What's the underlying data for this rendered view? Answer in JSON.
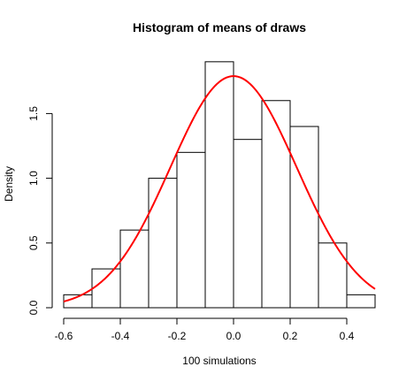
{
  "chart_data": {
    "type": "bar",
    "title": "Histogram of means of draws",
    "xlabel": "100 simulations",
    "ylabel": "Density",
    "xlim": [
      -0.6,
      0.5
    ],
    "ylim": [
      0,
      1.9
    ],
    "x_ticks": [
      -0.6,
      -0.4,
      -0.2,
      0.0,
      0.2,
      0.4
    ],
    "x_tick_labels": [
      "-0.6",
      "-0.4",
      "-0.2",
      "0.0",
      "0.2",
      "0.4"
    ],
    "y_ticks": [
      0.0,
      0.5,
      1.0,
      1.5
    ],
    "y_tick_labels": [
      "0.0",
      "0.5",
      "1.0",
      "1.5"
    ],
    "bins": [
      {
        "x0": -0.6,
        "x1": -0.5,
        "density": 0.1
      },
      {
        "x0": -0.5,
        "x1": -0.4,
        "density": 0.3
      },
      {
        "x0": -0.4,
        "x1": -0.3,
        "density": 0.6
      },
      {
        "x0": -0.3,
        "x1": -0.2,
        "density": 1.0
      },
      {
        "x0": -0.2,
        "x1": -0.1,
        "density": 1.2
      },
      {
        "x0": -0.1,
        "x1": 0.0,
        "density": 1.9
      },
      {
        "x0": 0.0,
        "x1": 0.1,
        "density": 1.3
      },
      {
        "x0": 0.1,
        "x1": 0.2,
        "density": 1.6
      },
      {
        "x0": 0.2,
        "x1": 0.3,
        "density": 1.4
      },
      {
        "x0": 0.3,
        "x1": 0.4,
        "density": 0.5
      },
      {
        "x0": 0.4,
        "x1": 0.5,
        "density": 0.1
      }
    ],
    "curve": {
      "type": "normal-density",
      "mean": 0.0,
      "sd": 0.223,
      "x_range": [
        -0.6,
        0.5
      ],
      "color": "#ff0000"
    },
    "bar_fill": "#ffffff",
    "bar_stroke": "#000000",
    "grid": false
  }
}
